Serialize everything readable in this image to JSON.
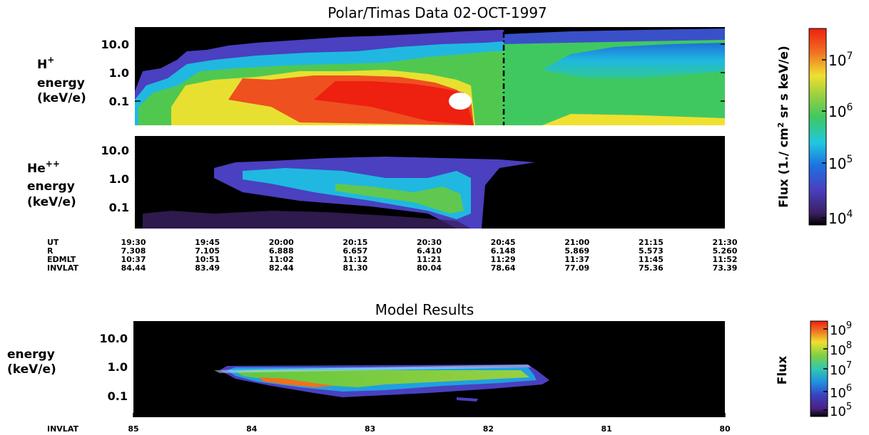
{
  "chart_data": [
    {
      "type": "heatmap",
      "title": "Polar/Timas Data   02-OCT-1997",
      "panel_label": [
        "H",
        "+",
        "energy",
        "(keV/e)"
      ],
      "y_ticks": [
        "10.0",
        "1.0",
        "0.1"
      ],
      "y_scale": "log",
      "colorscale": "rainbow (black-purple-blue-cyan-green-yellow-red-white)",
      "features": {
        "marker": "dashed vertical line near 20:46 UT",
        "high_flux_region": "red/white patch near 20:38 UT at 0.1 keV/e"
      }
    },
    {
      "type": "heatmap",
      "panel_label": [
        "He",
        "++",
        "energy",
        "(keV/e)"
      ],
      "y_ticks": [
        "10.0",
        "1.0",
        "0.1"
      ],
      "y_scale": "log",
      "colorscale": "rainbow (black-purple-blue-cyan-green-yellow-red-white)"
    },
    {
      "type": "table",
      "rows": [
        {
          "label": "UT",
          "values": [
            "19:30",
            "19:45",
            "20:00",
            "20:15",
            "20:30",
            "20:45",
            "21:00",
            "21:15",
            "21:30"
          ]
        },
        {
          "label": "R",
          "values": [
            "7.308",
            "7.105",
            "6.888",
            "6.657",
            "6.410",
            "6.148",
            "5.869",
            "5.573",
            "5.260"
          ]
        },
        {
          "label": "EDMLT",
          "values": [
            "10:37",
            "10:51",
            "11:02",
            "11:12",
            "11:21",
            "11:29",
            "11:37",
            "11:45",
            "11:52"
          ]
        },
        {
          "label": "INVLAT",
          "values": [
            "84.44",
            "83.49",
            "82.44",
            "81.30",
            "80.04",
            "78.64",
            "77.09",
            "75.36",
            "73.39"
          ]
        }
      ]
    },
    {
      "type": "heatmap",
      "title": "Model Results",
      "panel_label": [
        "energy",
        "(keV/e)"
      ],
      "y_ticks": [
        "10.0",
        "1.0",
        "0.1"
      ],
      "y_scale": "log",
      "x_label": "INVLAT",
      "x_ticks": [
        "85",
        "84",
        "83",
        "82",
        "81",
        "80"
      ],
      "colorscale": "rainbow (black-purple-blue-cyan-green-yellow-red)"
    },
    {
      "type": "colorbar",
      "label": "Flux (1./ cm",
      "label_sup": "2",
      "label_rest": " sr s keV/e)",
      "ticks": [
        {
          "base": "10",
          "exp": "7"
        },
        {
          "base": "10",
          "exp": "6"
        },
        {
          "base": "10",
          "exp": "5"
        },
        {
          "base": "10",
          "exp": "4"
        }
      ],
      "scale": "log"
    },
    {
      "type": "colorbar",
      "label": "Flux",
      "ticks": [
        {
          "base": "10",
          "exp": "9"
        },
        {
          "base": "10",
          "exp": "8"
        },
        {
          "base": "10",
          "exp": "7"
        },
        {
          "base": "10",
          "exp": "6"
        },
        {
          "base": "10",
          "exp": "5"
        }
      ],
      "scale": "log"
    }
  ]
}
